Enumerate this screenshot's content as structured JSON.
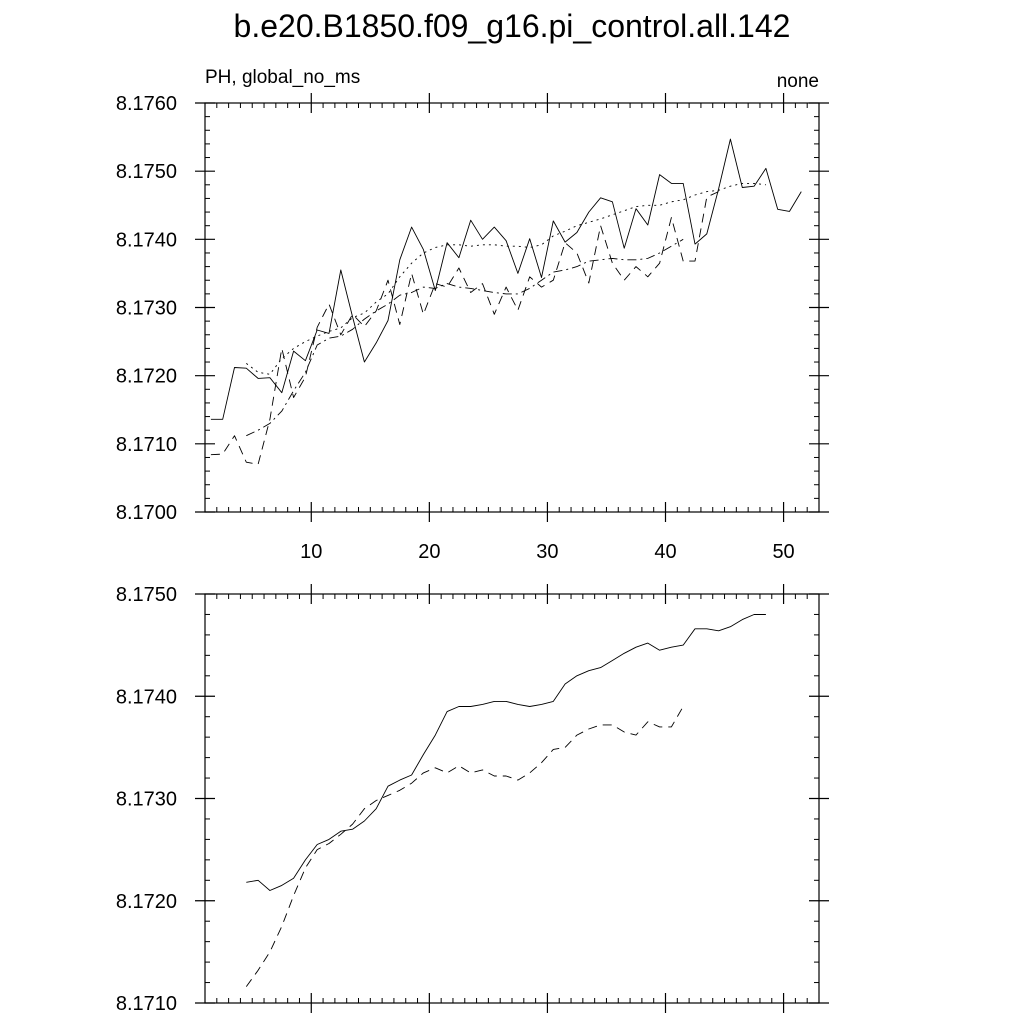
{
  "figure": {
    "title": "b.e20.B1850.f09_g16.pi_control.all.142",
    "left_string": "PH, global_no_ms",
    "right_string": "none"
  },
  "chart_data": [
    {
      "type": "line",
      "xlim": [
        1,
        53
      ],
      "ylim": [
        8.17,
        8.176
      ],
      "x_ticks": [
        10,
        20,
        30,
        40,
        50
      ],
      "x_tick_labels": [
        "10",
        "20",
        "30",
        "40",
        "50"
      ],
      "y_ticks": [
        8.17,
        8.171,
        8.172,
        8.173,
        8.174,
        8.175,
        8.176
      ],
      "y_tick_labels": [
        "8.1700",
        "8.1710",
        "8.1720",
        "8.1730",
        "8.1740",
        "8.1750",
        "8.1760"
      ],
      "grid": false,
      "series": [
        {
          "style": "solid",
          "x": [
            1.5,
            2.5,
            3.5,
            4.5,
            5.5,
            6.5,
            7.5,
            8.5,
            9.5,
            10.5,
            11.5,
            12.5,
            13.5,
            14.5,
            15.5,
            16.5,
            17.5,
            18.5,
            19.5,
            20.5,
            21.5,
            22.5,
            23.5,
            24.5,
            25.5,
            26.5,
            27.5,
            28.5,
            29.5,
            30.5,
            31.5,
            32.5,
            33.5,
            34.5,
            35.5,
            36.5,
            37.5,
            38.5,
            39.5,
            40.5,
            41.5,
            42.5,
            43.5,
            44.5,
            45.5,
            46.5,
            47.5,
            48.5,
            49.5,
            50.5,
            51.5
          ],
          "y": [
            8.17136,
            8.17136,
            8.17212,
            8.17211,
            8.17196,
            8.17197,
            8.17175,
            8.17236,
            8.17222,
            8.17267,
            8.17262,
            8.17355,
            8.17286,
            8.1722,
            8.17248,
            8.17281,
            8.1737,
            8.17418,
            8.17385,
            8.17325,
            8.17395,
            8.17373,
            8.17428,
            8.174,
            8.17418,
            8.17398,
            8.1735,
            8.17401,
            8.17344,
            8.17427,
            8.17396,
            8.1741,
            8.1744,
            8.17461,
            8.17455,
            8.17387,
            8.17445,
            8.17421,
            8.17495,
            8.17482,
            8.17482,
            8.17393,
            8.17408,
            8.17474,
            8.17547,
            8.17476,
            8.17478,
            8.17504,
            8.17444,
            8.17441,
            8.1747
          ]
        },
        {
          "style": "dash",
          "x": [
            1.5,
            2.5,
            3.5,
            4.5,
            5.5,
            6.5,
            7.5,
            8.5,
            9.5,
            10.5,
            11.5,
            12.5,
            13.5,
            14.5,
            15.5,
            16.5,
            17.5,
            18.5,
            19.5,
            20.5,
            21.5,
            22.5,
            23.5,
            24.5,
            25.5,
            26.5,
            27.5,
            28.5,
            29.5,
            30.5,
            31.5,
            32.5,
            33.5,
            34.5,
            35.5,
            36.5,
            37.5,
            38.5,
            39.5,
            40.5,
            41.5,
            42.5,
            43.5,
            44.5
          ],
          "y": [
            8.17084,
            8.17085,
            8.17112,
            8.17073,
            8.1707,
            8.17136,
            8.1724,
            8.17168,
            8.17198,
            8.17271,
            8.17305,
            8.1726,
            8.1729,
            8.17272,
            8.17295,
            8.1734,
            8.17275,
            8.1735,
            8.1729,
            8.17335,
            8.1733,
            8.17358,
            8.17322,
            8.17335,
            8.1729,
            8.1733,
            8.17296,
            8.17345,
            8.1733,
            8.1734,
            8.17395,
            8.1738,
            8.17336,
            8.1742,
            8.17365,
            8.1734,
            8.1736,
            8.17345,
            8.17365,
            8.17432,
            8.17368,
            8.17368,
            8.17462,
            8.1747
          ]
        },
        {
          "style": "dot",
          "x": [
            4.5,
            5.5,
            6.5,
            7.5,
            8.5,
            9.5,
            10.5,
            11.5,
            12.5,
            13.5,
            14.5,
            15.5,
            16.5,
            17.5,
            18.5,
            19.5,
            20.5,
            21.5,
            22.5,
            23.5,
            24.5,
            25.5,
            26.5,
            27.5,
            28.5,
            29.5,
            30.5,
            31.5,
            32.5,
            33.5,
            34.5,
            35.5,
            36.5,
            37.5,
            38.5,
            39.5,
            40.5,
            41.5,
            42.5,
            43.5,
            44.5,
            45.5,
            46.5,
            47.5,
            48.5
          ],
          "y": [
            8.17218,
            8.17205,
            8.17202,
            8.17225,
            8.1724,
            8.1725,
            8.17258,
            8.17265,
            8.1727,
            8.17285,
            8.17292,
            8.17308,
            8.1732,
            8.17345,
            8.17365,
            8.1738,
            8.17388,
            8.17392,
            8.17392,
            8.1739,
            8.17392,
            8.17392,
            8.1739,
            8.1739,
            8.17388,
            8.17392,
            8.17405,
            8.17412,
            8.1742,
            8.17425,
            8.1743,
            8.17436,
            8.17442,
            8.17448,
            8.1745,
            8.1745,
            8.17455,
            8.17458,
            8.17465,
            8.1747,
            8.17472,
            8.17478,
            8.17482,
            8.17482,
            8.1748
          ]
        },
        {
          "style": "dashdot",
          "x": [
            4.5,
            5.5,
            6.5,
            7.5,
            8.5,
            9.5,
            10.5,
            11.5,
            12.5,
            13.5,
            14.5,
            15.5,
            16.5,
            17.5,
            18.5,
            19.5,
            20.5,
            21.5,
            22.5,
            23.5,
            24.5,
            25.5,
            26.5,
            27.5,
            28.5,
            29.5,
            30.5,
            31.5,
            32.5,
            33.5,
            34.5,
            35.5,
            36.5,
            37.5,
            38.5,
            39.5,
            40.5,
            41.5
          ],
          "y": [
            8.17112,
            8.1712,
            8.1713,
            8.17148,
            8.17178,
            8.17205,
            8.17245,
            8.17255,
            8.17258,
            8.17268,
            8.17283,
            8.17295,
            8.17305,
            8.17318,
            8.17322,
            8.1733,
            8.17328,
            8.17335,
            8.1733,
            8.17328,
            8.17325,
            8.17322,
            8.1732,
            8.1732,
            8.17328,
            8.1734,
            8.17352,
            8.17355,
            8.1736,
            8.17368,
            8.1737,
            8.17372,
            8.1737,
            8.1737,
            8.17372,
            8.1738,
            8.1739,
            8.174
          ]
        }
      ]
    },
    {
      "type": "line",
      "xlim": [
        1,
        53
      ],
      "ylim": [
        8.171,
        8.175
      ],
      "x_ticks": [
        10,
        20,
        30,
        40,
        50
      ],
      "y_ticks": [
        8.171,
        8.172,
        8.173,
        8.174,
        8.175
      ],
      "y_tick_labels": [
        "8.1710",
        "8.1720",
        "8.1730",
        "8.1740",
        "8.1750"
      ],
      "grid": false,
      "series": [
        {
          "style": "solid",
          "x": [
            4.5,
            5.5,
            6.5,
            7.5,
            8.5,
            9.5,
            10.5,
            11.5,
            12.5,
            13.5,
            14.5,
            15.5,
            16.5,
            17.5,
            18.5,
            19.5,
            20.5,
            21.5,
            22.5,
            23.5,
            24.5,
            25.5,
            26.5,
            27.5,
            28.5,
            29.5,
            30.5,
            31.5,
            32.5,
            33.5,
            34.5,
            35.5,
            36.5,
            37.5,
            38.5,
            39.5,
            40.5,
            41.5,
            42.5,
            43.5,
            44.5,
            45.5,
            46.5,
            47.5,
            48.5
          ],
          "y": [
            8.17218,
            8.1722,
            8.1721,
            8.17215,
            8.17222,
            8.1724,
            8.17255,
            8.1726,
            8.17268,
            8.1727,
            8.17278,
            8.1729,
            8.17312,
            8.17318,
            8.17323,
            8.17343,
            8.17362,
            8.17385,
            8.1739,
            8.1739,
            8.17392,
            8.17395,
            8.17395,
            8.17392,
            8.1739,
            8.17392,
            8.17395,
            8.17412,
            8.1742,
            8.17425,
            8.17428,
            8.17435,
            8.17442,
            8.17448,
            8.17452,
            8.17445,
            8.17448,
            8.1745,
            8.17466,
            8.17466,
            8.17464,
            8.17468,
            8.17475,
            8.1748,
            8.1748
          ]
        },
        {
          "style": "dash",
          "x": [
            4.5,
            5.5,
            6.5,
            7.5,
            8.5,
            9.5,
            10.5,
            11.5,
            12.5,
            13.5,
            14.5,
            15.5,
            16.5,
            17.5,
            18.5,
            19.5,
            20.5,
            21.5,
            22.5,
            23.5,
            24.5,
            25.5,
            26.5,
            27.5,
            28.5,
            29.5,
            30.5,
            31.5,
            32.5,
            33.5,
            34.5,
            35.5,
            36.5,
            37.5,
            38.5,
            39.5,
            40.5,
            41.5
          ],
          "y": [
            8.17116,
            8.17132,
            8.1715,
            8.17175,
            8.17205,
            8.17232,
            8.1725,
            8.17256,
            8.17265,
            8.17275,
            8.1729,
            8.17298,
            8.17303,
            8.17308,
            8.17315,
            8.17325,
            8.1733,
            8.17325,
            8.17332,
            8.17325,
            8.17328,
            8.17322,
            8.17322,
            8.17318,
            8.17325,
            8.17335,
            8.17348,
            8.1735,
            8.17362,
            8.17368,
            8.17372,
            8.17372,
            8.17365,
            8.17362,
            8.17375,
            8.1737,
            8.1737,
            8.1739
          ]
        }
      ]
    }
  ]
}
